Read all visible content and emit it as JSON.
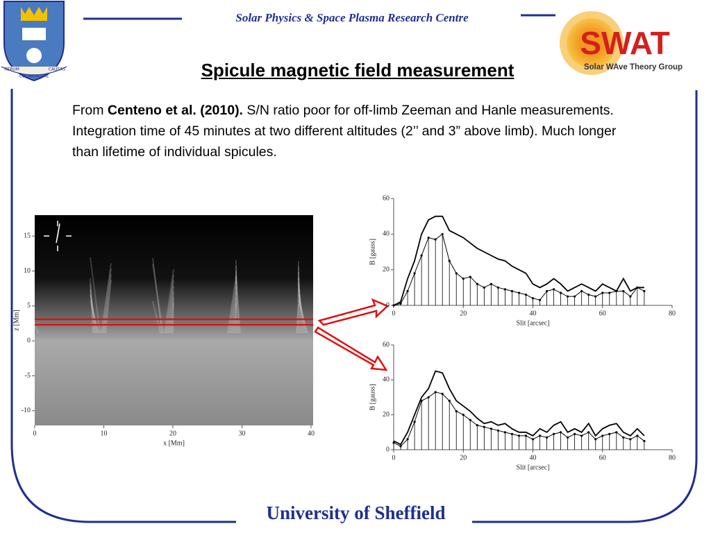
{
  "header": {
    "centre": "Solar Physics & Space Plasma Research Centre",
    "title": "Spicule magnetic field measurement"
  },
  "logos": {
    "left_motto": [
      "RERUM",
      "COGNOSCERE",
      "CAUSAS"
    ],
    "right_title": "SWAT",
    "right_subtitle": "Solar WAve Theory Group"
  },
  "body": {
    "prefix": "From ",
    "citation": "Centeno et al. (2010).",
    "text": " S/N ratio poor for off-limb Zeeman and Hanle measurements. Integration time of 45 minutes at two different altitudes (2’’ and 3” above limb).  Much longer than lifetime of individual spicules."
  },
  "footer": {
    "university": "University of Sheffield"
  },
  "chart_data": [
    {
      "type": "image",
      "xlabel": "x [Mm]",
      "ylabel": "z [Mm]",
      "xlim": [
        0,
        40.3
      ],
      "ylim": [
        -12.1,
        18
      ],
      "xticks": [
        0,
        10,
        20,
        30,
        40
      ],
      "yticks": [
        15,
        10,
        5,
        0,
        -5,
        -10
      ]
    },
    {
      "type": "line",
      "xlabel": "Slit [arcsec]",
      "ylabel": "B [gauss]",
      "xlim": [
        0,
        80
      ],
      "ylim": [
        0,
        60
      ],
      "xticks": [
        0,
        20,
        40,
        60,
        80
      ],
      "yticks": [
        0,
        20,
        40,
        60
      ],
      "x": [
        0,
        2,
        4,
        6,
        8,
        10,
        12,
        14,
        16,
        18,
        20,
        22,
        24,
        26,
        28,
        30,
        32,
        34,
        36,
        38,
        40,
        42,
        44,
        46,
        48,
        50,
        52,
        54,
        56,
        58,
        60,
        62,
        64,
        66,
        68,
        70,
        72
      ],
      "series": [
        {
          "color": "#000000",
          "values": [
            0,
            2,
            15,
            25,
            40,
            48,
            50,
            50,
            42,
            40,
            38,
            35,
            32,
            30,
            28,
            26,
            25,
            22,
            20,
            18,
            12,
            10,
            12,
            15,
            12,
            8,
            10,
            12,
            10,
            8,
            12,
            10,
            8,
            15,
            8,
            10,
            10
          ]
        },
        {
          "color": "#000000",
          "drop_lines": true,
          "values": [
            0,
            1,
            8,
            18,
            28,
            38,
            37,
            40,
            25,
            18,
            15,
            16,
            12,
            10,
            12,
            10,
            9,
            8,
            7,
            6,
            4,
            3,
            8,
            9,
            7,
            5,
            5,
            8,
            6,
            5,
            7,
            7,
            8,
            8,
            5,
            10,
            8
          ]
        }
      ]
    },
    {
      "type": "line",
      "xlabel": "Slit [arcsec]",
      "ylabel": "B [gauss]",
      "xlim": [
        0,
        80
      ],
      "ylim": [
        0,
        60
      ],
      "xticks": [
        0,
        20,
        40,
        60,
        80
      ],
      "yticks": [
        0,
        20,
        40,
        60
      ],
      "x": [
        0,
        2,
        4,
        6,
        8,
        10,
        12,
        14,
        16,
        18,
        20,
        22,
        24,
        26,
        28,
        30,
        32,
        34,
        36,
        38,
        40,
        42,
        44,
        46,
        48,
        50,
        52,
        54,
        56,
        58,
        60,
        62,
        64,
        66,
        68,
        70,
        72
      ],
      "series": [
        {
          "color": "#000000",
          "values": [
            5,
            3,
            10,
            20,
            30,
            35,
            45,
            44,
            35,
            28,
            25,
            22,
            18,
            15,
            16,
            14,
            15,
            12,
            10,
            10,
            8,
            12,
            10,
            14,
            16,
            10,
            12,
            10,
            15,
            8,
            12,
            14,
            15,
            10,
            8,
            12,
            8
          ]
        },
        {
          "color": "#000000",
          "drop_lines": true,
          "values": [
            4,
            2,
            6,
            16,
            28,
            30,
            33,
            32,
            28,
            22,
            20,
            17,
            14,
            13,
            12,
            11,
            10,
            9,
            8,
            8,
            6,
            8,
            7,
            9,
            10,
            7,
            9,
            8,
            10,
            6,
            8,
            9,
            10,
            7,
            6,
            8,
            5
          ]
        }
      ]
    }
  ]
}
